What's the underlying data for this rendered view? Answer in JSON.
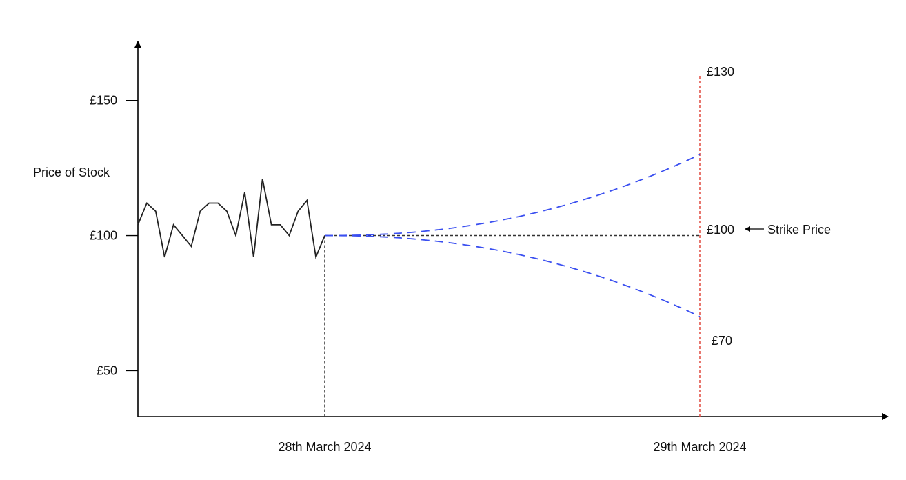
{
  "chart_data": {
    "type": "line",
    "title": "",
    "ylabel": "Price of Stock",
    "xlabel": "",
    "y_ticks": [
      {
        "value": 150,
        "label": "£150"
      },
      {
        "value": 100,
        "label": "£100"
      },
      {
        "value": 50,
        "label": "£50"
      }
    ],
    "x_ticks": [
      {
        "value": "2024-03-28",
        "label": "28th March 2024"
      },
      {
        "value": "2024-03-29",
        "label": "29th March 2024"
      }
    ],
    "ylim": [
      33,
      166
    ],
    "grid": false,
    "series": [
      {
        "style": "solid",
        "color": "#222222",
        "points": [
          {
            "x": "2024-03-27",
            "y": 104
          },
          {
            "x": "2024-03-27",
            "y": 112
          },
          {
            "x": "2024-03-27",
            "y": 109
          },
          {
            "x": "2024-03-27",
            "y": 92
          },
          {
            "x": "2024-03-27",
            "y": 104
          },
          {
            "x": "2024-03-27",
            "y": 100
          },
          {
            "x": "2024-03-27",
            "y": 96
          },
          {
            "x": "2024-03-27",
            "y": 109
          },
          {
            "x": "2024-03-27",
            "y": 112
          },
          {
            "x": "2024-03-27",
            "y": 112
          },
          {
            "x": "2024-03-27",
            "y": 109
          },
          {
            "x": "2024-03-27",
            "y": 100
          },
          {
            "x": "2024-03-27",
            "y": 116
          },
          {
            "x": "2024-03-27",
            "y": 92
          },
          {
            "x": "2024-03-27",
            "y": 121
          },
          {
            "x": "2024-03-27",
            "y": 104
          },
          {
            "x": "2024-03-27",
            "y": 104
          },
          {
            "x": "2024-03-27",
            "y": 100
          },
          {
            "x": "2024-03-27",
            "y": 109
          },
          {
            "x": "2024-03-27",
            "y": 113
          },
          {
            "x": "2024-03-27",
            "y": 92
          },
          {
            "x": "2024-03-28",
            "y": 100
          }
        ]
      },
      {
        "style": "dashed",
        "color": "#3a4ff0",
        "from": 100,
        "to": 130,
        "x_start": "2024-03-28",
        "x_end": "2024-03-29"
      },
      {
        "style": "dashed",
        "color": "#3a4ff0",
        "from": 100,
        "to": 70,
        "x_start": "2024-03-28",
        "x_end": "2024-03-29"
      }
    ],
    "reference_lines": {
      "strike_price": 100,
      "strike_color": "#333333",
      "expiry_date": "2024-03-29",
      "expiry_color": "#e0483f",
      "current_date": "2024-03-28"
    },
    "annotations": [
      {
        "text": "£130",
        "value": 130
      },
      {
        "text": "£100",
        "value": 100
      },
      {
        "text": "£70",
        "value": 70
      },
      {
        "text": "Strike Price"
      }
    ]
  }
}
